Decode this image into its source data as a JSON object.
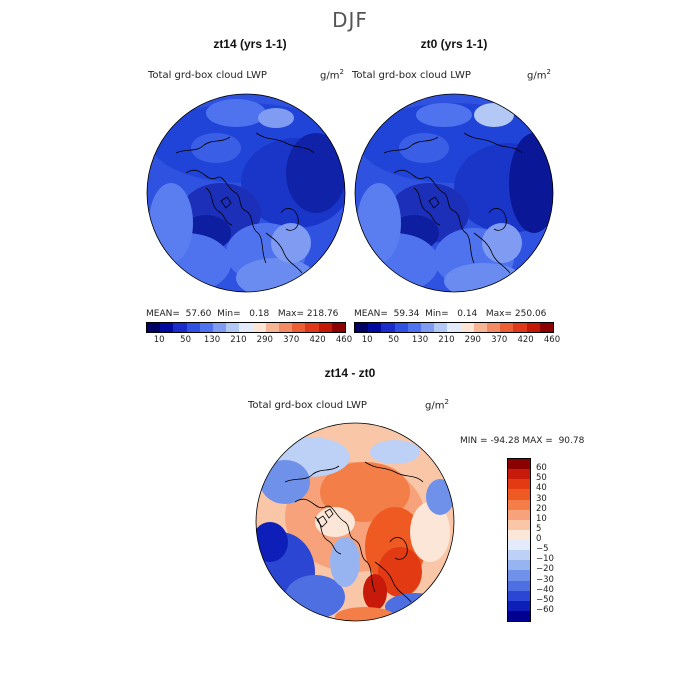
{
  "season": "DJF",
  "panels": [
    {
      "title": "zt14 (yrs 1-1)",
      "variable": "Total grd-box cloud LWP",
      "units_base": "g/m",
      "units_exp": "2",
      "stats": {
        "mean_label": "MEAN=",
        "mean": "57.60",
        "min_label": "Min=",
        "min": "0.18",
        "max_label": "Max=",
        "max": "218.76"
      }
    },
    {
      "title": "zt0 (yrs 1-1)",
      "variable": "Total grd-box cloud LWP",
      "units_base": "g/m",
      "units_exp": "2",
      "stats": {
        "mean_label": "MEAN=",
        "mean": "59.34",
        "min_label": "Min=",
        "min": "0.14",
        "max_label": "Max=",
        "max": "250.06"
      }
    }
  ],
  "colorbar_top": {
    "colors": [
      "#000066",
      "#000a9e",
      "#1a2dcc",
      "#2f52e0",
      "#4f73ee",
      "#7f9cf2",
      "#b3c8f5",
      "#e3eafa",
      "#fde4d4",
      "#f7b593",
      "#f28a63",
      "#ec5e34",
      "#e0381a",
      "#c41908",
      "#8b0000"
    ],
    "ticks": [
      "10",
      "50",
      "130",
      "210",
      "290",
      "370",
      "420",
      "460"
    ]
  },
  "diff": {
    "title": "zt14 - zt0",
    "variable": "Total grd-box cloud LWP",
    "units_base": "g/m",
    "units_exp": "2",
    "min_label": "MIN =",
    "min": "-94.28",
    "max_label": "MAX =",
    "max": "90.78",
    "colors_top_to_bottom": [
      "#8b0000",
      "#c81a0a",
      "#e23a12",
      "#ef5a22",
      "#f47e48",
      "#f7a27a",
      "#f9c6a8",
      "#fbe6d8",
      "#e3ebfb",
      "#bdd0f6",
      "#97b4f1",
      "#6f91ea",
      "#4d6fe2",
      "#2a46d2",
      "#0d1fb8",
      "#000090"
    ],
    "ticks": [
      "60",
      "50",
      "40",
      "30",
      "20",
      "10",
      "5",
      "0",
      "−5",
      "−10",
      "−20",
      "−30",
      "−40",
      "−50",
      "−60"
    ]
  }
}
